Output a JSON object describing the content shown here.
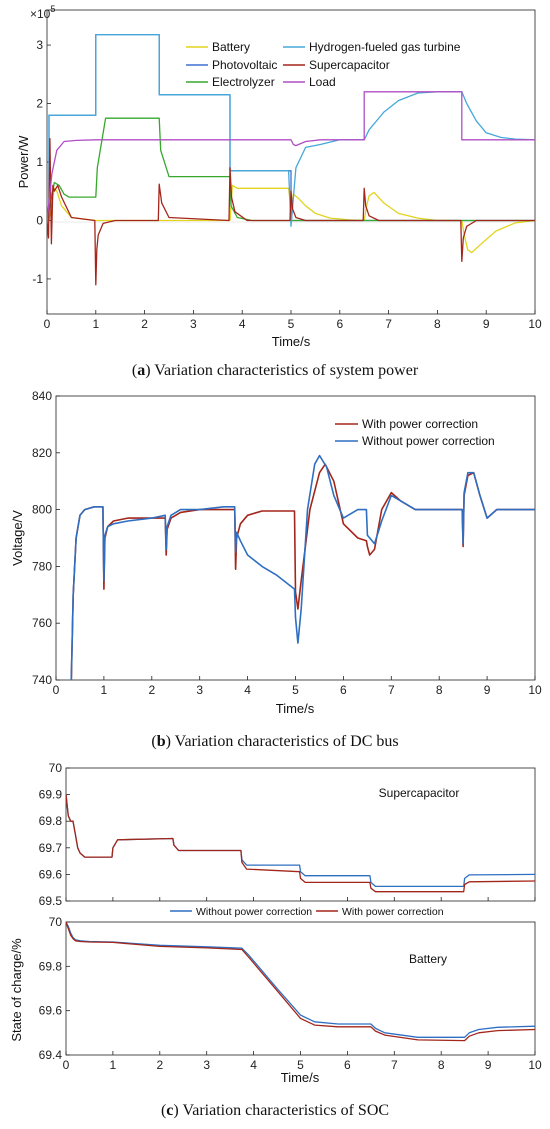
{
  "colors": {
    "battery": "#e2d31c",
    "photovoltaic": "#3f6fd0",
    "electrolyzer": "#36a82c",
    "gas_turbine": "#45a8d9",
    "supercapacitor": "#a3261a",
    "load": "#b04fc4",
    "with_correction": "#a3261a",
    "without_correction": "#2f6fc2"
  },
  "chart_data": [
    {
      "type": "line",
      "caption_label": "a",
      "caption_text": "Variation characteristics of system power",
      "xlabel": "Time/s",
      "ylabel": "Power/W",
      "exponent_label": "×10",
      "exponent_power": "5",
      "xlim": [
        0,
        10
      ],
      "ylim": [
        -1.6,
        3.6
      ],
      "xticks": [
        "0",
        "1",
        "2",
        "3",
        "4",
        "5",
        "6",
        "7",
        "8",
        "9",
        "10"
      ],
      "yticks": [
        "-1",
        "0",
        "1",
        "2",
        "3"
      ],
      "legend_placement": "top-right",
      "grid": false,
      "series": [
        {
          "name": "Battery",
          "color_key": "battery",
          "x": [
            0,
            0.05,
            0.1,
            0.15,
            0.2,
            0.3,
            0.5,
            1,
            3.75,
            3.8,
            3.9,
            4,
            4.5,
            4.95,
            5.0,
            5.05,
            5.15,
            5.3,
            5.5,
            5.8,
            6.2,
            6.5,
            6.55,
            6.6,
            6.7,
            6.9,
            7.2,
            7.6,
            8,
            8.5,
            8.55,
            8.62,
            8.7,
            8.9,
            9.2,
            9.6,
            10
          ],
          "y": [
            0,
            0.05,
            0.3,
            0.55,
            0.5,
            0.25,
            0.05,
            0,
            0,
            0.6,
            0.55,
            0.55,
            0.55,
            0.55,
            0.2,
            0.45,
            0.38,
            0.25,
            0.12,
            0.04,
            0.01,
            0,
            0.25,
            0.42,
            0.48,
            0.3,
            0.12,
            0.04,
            0,
            0,
            -0.25,
            -0.5,
            -0.55,
            -0.4,
            -0.18,
            -0.04,
            0
          ]
        },
        {
          "name": "Photovoltaic",
          "color_key": "photovoltaic",
          "x": [
            0,
            0.04,
            0.04,
            1,
            1,
            2.3,
            2.3,
            3.75,
            3.75,
            5,
            5,
            10
          ],
          "y": [
            0,
            0,
            1.8,
            1.8,
            3.18,
            3.18,
            2.15,
            2.15,
            0.85,
            0.85,
            0,
            0
          ]
        },
        {
          "name": "Electrolyzer",
          "color_key": "electrolyzer",
          "x": [
            0,
            0.05,
            0.15,
            0.25,
            0.35,
            0.45,
            1,
            1.03,
            1.2,
            2.3,
            2.33,
            2.5,
            3.75,
            3.77,
            3.9,
            4.2,
            10
          ],
          "y": [
            0,
            0.2,
            0.65,
            0.6,
            0.45,
            0.4,
            0.4,
            0.9,
            1.75,
            1.75,
            1.2,
            0.75,
            0.75,
            0.25,
            0.05,
            0,
            0
          ]
        },
        {
          "name": "Hydrogen-fueled gas turbine",
          "color_key": "gas_turbine",
          "x": [
            0,
            0.04,
            0.04,
            1,
            1,
            2.3,
            2.3,
            3.75,
            3.75,
            4.95,
            5,
            5.1,
            5.3,
            5.6,
            6,
            6.5,
            6.6,
            6.9,
            7.2,
            7.6,
            8,
            8.5,
            8.6,
            8.8,
            9,
            9.3,
            9.6,
            10
          ],
          "y": [
            0,
            0,
            1.8,
            1.8,
            3.18,
            3.18,
            2.15,
            2.15,
            0.85,
            0.85,
            -0.1,
            0.9,
            1.25,
            1.3,
            1.38,
            1.38,
            1.55,
            1.85,
            2.05,
            2.18,
            2.2,
            2.2,
            2.0,
            1.7,
            1.5,
            1.42,
            1.39,
            1.38
          ]
        },
        {
          "name": "Supercapacitor",
          "color_key": "supercapacitor",
          "x": [
            0,
            0.03,
            0.06,
            0.09,
            0.12,
            0.15,
            0.22,
            0.3,
            0.5,
            0.98,
            1,
            1.02,
            1.05,
            1.15,
            1.4,
            2.28,
            2.3,
            2.35,
            2.5,
            3.73,
            3.75,
            3.78,
            3.85,
            4.1,
            4.98,
            5,
            5.03,
            5.1,
            5.3,
            6.48,
            6.5,
            6.53,
            6.6,
            6.8,
            8.48,
            8.5,
            8.53,
            8.6,
            8.8,
            10
          ],
          "y": [
            0,
            -0.3,
            1.4,
            -0.4,
            0.6,
            0.5,
            0.6,
            0.4,
            0.05,
            0,
            -1.1,
            -0.5,
            -0.25,
            -0.05,
            0,
            0,
            0.62,
            0.3,
            0.05,
            0,
            0.9,
            0.4,
            0.15,
            0,
            0,
            0.5,
            0.2,
            0.05,
            0,
            0,
            0.55,
            0.25,
            0.08,
            0,
            0,
            -0.7,
            -0.3,
            -0.1,
            0,
            0
          ]
        },
        {
          "name": "Load",
          "color_key": "load",
          "x": [
            0,
            0.1,
            0.2,
            0.35,
            0.6,
            1,
            5,
            5.05,
            5.1,
            5.3,
            5.6,
            6,
            6.5,
            6.5,
            8.5,
            8.5,
            10
          ],
          "y": [
            0,
            0.8,
            1.2,
            1.35,
            1.37,
            1.38,
            1.38,
            1.3,
            1.28,
            1.35,
            1.38,
            1.38,
            1.38,
            2.2,
            2.2,
            1.38,
            1.38
          ]
        }
      ]
    },
    {
      "type": "line",
      "caption_label": "b",
      "caption_text": "Variation characteristics of DC bus",
      "xlabel": "Time/s",
      "ylabel": "Voltage/V",
      "xlim": [
        0,
        10
      ],
      "ylim": [
        740,
        840
      ],
      "xticks": [
        "0",
        "1",
        "2",
        "3",
        "4",
        "5",
        "6",
        "7",
        "8",
        "9",
        "10"
      ],
      "yticks": [
        "740",
        "760",
        "780",
        "800",
        "820",
        "840"
      ],
      "legend_placement": "top-right",
      "grid": false,
      "series": [
        {
          "name": "With power correction",
          "color_key": "with_correction",
          "x": [
            0.32,
            0.36,
            0.42,
            0.5,
            0.6,
            0.8,
            0.98,
            1.0,
            1.02,
            1.08,
            1.2,
            1.5,
            2.0,
            2.28,
            2.3,
            2.32,
            2.4,
            2.6,
            3.0,
            3.5,
            3.73,
            3.75,
            3.77,
            3.85,
            4.0,
            4.3,
            4.98,
            5.0,
            5.05,
            5.12,
            5.3,
            5.5,
            5.62,
            5.8,
            6.0,
            6.3,
            6.48,
            6.5,
            6.55,
            6.65,
            6.8,
            7.0,
            7.2,
            7.5,
            8.0,
            8.48,
            8.5,
            8.52,
            8.6,
            8.72,
            8.85,
            9.0,
            9.2,
            9.5,
            10
          ],
          "y": [
            740,
            770,
            790,
            798,
            800,
            801,
            801,
            772,
            790,
            794,
            796,
            797,
            797,
            797,
            784,
            793,
            797,
            799,
            800,
            800,
            800,
            779,
            790,
            795,
            798,
            799.5,
            799.5,
            771,
            765,
            775,
            800,
            813,
            816,
            810,
            795,
            790,
            789,
            787,
            784,
            786,
            800,
            806,
            803,
            800,
            800,
            800,
            787,
            805,
            812,
            813,
            805,
            797,
            800,
            800,
            800
          ]
        },
        {
          "name": "Without power correction",
          "color_key": "without_correction",
          "x": [
            0.32,
            0.36,
            0.42,
            0.5,
            0.6,
            0.8,
            0.98,
            1.0,
            1.02,
            1.08,
            1.2,
            1.5,
            2.0,
            2.28,
            2.3,
            2.32,
            2.4,
            2.6,
            3.0,
            3.5,
            3.73,
            3.75,
            3.77,
            3.85,
            4.0,
            4.3,
            4.6,
            4.98,
            5.0,
            5.05,
            5.12,
            5.25,
            5.4,
            5.5,
            5.65,
            5.8,
            6.0,
            6.3,
            6.48,
            6.5,
            6.55,
            6.65,
            6.8,
            7.0,
            7.2,
            7.5,
            8.0,
            8.48,
            8.5,
            8.52,
            8.6,
            8.72,
            8.85,
            9.0,
            9.2,
            9.5,
            10
          ],
          "y": [
            740,
            770,
            790,
            798,
            800,
            801,
            801,
            775,
            791,
            794,
            795,
            796,
            797,
            798,
            786,
            794,
            798,
            800,
            800,
            801,
            801,
            785,
            792,
            789,
            784,
            780,
            777,
            772,
            762,
            753,
            765,
            800,
            816,
            819,
            815,
            805,
            797,
            800,
            800,
            791,
            790,
            788,
            796,
            805,
            803,
            800,
            800,
            800,
            788,
            806,
            813,
            813,
            805,
            797,
            800,
            800,
            800
          ]
        }
      ]
    },
    {
      "type": "line",
      "caption_label": "c",
      "caption_text": "Variation characteristics of SOC",
      "xlabel": "Time/s",
      "ylabel": "State of charge/%",
      "legend_placement": "between-panels",
      "grid": false,
      "subplots": [
        {
          "title": "Supercapacitor",
          "xlim": [
            0,
            10
          ],
          "ylim": [
            69.5,
            70
          ],
          "yticks": [
            "69.5",
            "69.6",
            "69.7",
            "69.8",
            "69.9",
            "70"
          ],
          "series": [
            {
              "name": "Without power correction",
              "color_key": "without_correction",
              "x": [
                0,
                0.05,
                0.1,
                0.15,
                0.2,
                0.25,
                0.3,
                0.4,
                0.6,
                0.98,
                1.0,
                1.1,
                2.28,
                2.3,
                2.4,
                3.73,
                3.75,
                3.85,
                4.98,
                5.0,
                5.1,
                6.48,
                6.5,
                6.6,
                8.48,
                8.5,
                8.6,
                10
              ],
              "y": [
                69.9,
                69.82,
                69.8,
                69.8,
                69.75,
                69.7,
                69.68,
                69.665,
                69.665,
                69.665,
                69.7,
                69.73,
                69.735,
                69.71,
                69.69,
                69.69,
                69.655,
                69.635,
                69.635,
                69.61,
                69.595,
                69.595,
                69.57,
                69.555,
                69.555,
                69.585,
                69.598,
                69.6
              ]
            },
            {
              "name": "With power correction",
              "color_key": "with_correction",
              "x": [
                0,
                0.05,
                0.1,
                0.15,
                0.2,
                0.25,
                0.3,
                0.4,
                0.6,
                0.98,
                1.0,
                1.1,
                2.28,
                2.3,
                2.4,
                3.73,
                3.75,
                3.85,
                4.98,
                5.0,
                5.1,
                6.48,
                6.5,
                6.6,
                8.48,
                8.5,
                8.6,
                10
              ],
              "y": [
                69.9,
                69.82,
                69.8,
                69.8,
                69.75,
                69.7,
                69.68,
                69.665,
                69.665,
                69.665,
                69.7,
                69.73,
                69.735,
                69.71,
                69.69,
                69.69,
                69.645,
                69.62,
                69.61,
                69.585,
                69.57,
                69.57,
                69.548,
                69.535,
                69.535,
                69.562,
                69.572,
                69.575
              ]
            }
          ]
        },
        {
          "title": "Battery",
          "xlim": [
            0,
            10
          ],
          "ylim": [
            69.4,
            70
          ],
          "xticks": [
            "0",
            "1",
            "2",
            "3",
            "4",
            "5",
            "6",
            "7",
            "8",
            "9",
            "10"
          ],
          "yticks": [
            "69.4",
            "69.6",
            "69.8",
            "70"
          ],
          "series": [
            {
              "name": "Without power correction",
              "color_key": "without_correction",
              "x": [
                0,
                0.05,
                0.1,
                0.15,
                0.2,
                0.3,
                0.5,
                1,
                2,
                3,
                3.75,
                3.9,
                4.5,
                5,
                5.3,
                5.8,
                6.5,
                6.6,
                6.8,
                7.5,
                8.5,
                8.6,
                8.8,
                9.2,
                10
              ],
              "y": [
                70,
                69.98,
                69.95,
                69.93,
                69.92,
                69.915,
                69.912,
                69.91,
                69.895,
                69.888,
                69.882,
                69.85,
                69.7,
                69.58,
                69.55,
                69.54,
                69.54,
                69.52,
                69.5,
                69.48,
                69.48,
                69.5,
                69.515,
                69.525,
                69.53
              ]
            },
            {
              "name": "With power correction",
              "color_key": "with_correction",
              "x": [
                0,
                0.05,
                0.1,
                0.15,
                0.2,
                0.3,
                0.5,
                1,
                2,
                3,
                3.75,
                3.9,
                4.5,
                5,
                5.3,
                5.8,
                6.5,
                6.6,
                6.8,
                7.5,
                8.5,
                8.6,
                8.8,
                9.2,
                10
              ],
              "y": [
                70,
                69.97,
                69.94,
                69.925,
                69.915,
                69.912,
                69.91,
                69.908,
                69.89,
                69.883,
                69.876,
                69.84,
                69.69,
                69.565,
                69.535,
                69.527,
                69.527,
                69.508,
                69.49,
                69.468,
                69.465,
                69.485,
                69.5,
                69.51,
                69.515
              ]
            }
          ]
        }
      ]
    }
  ]
}
